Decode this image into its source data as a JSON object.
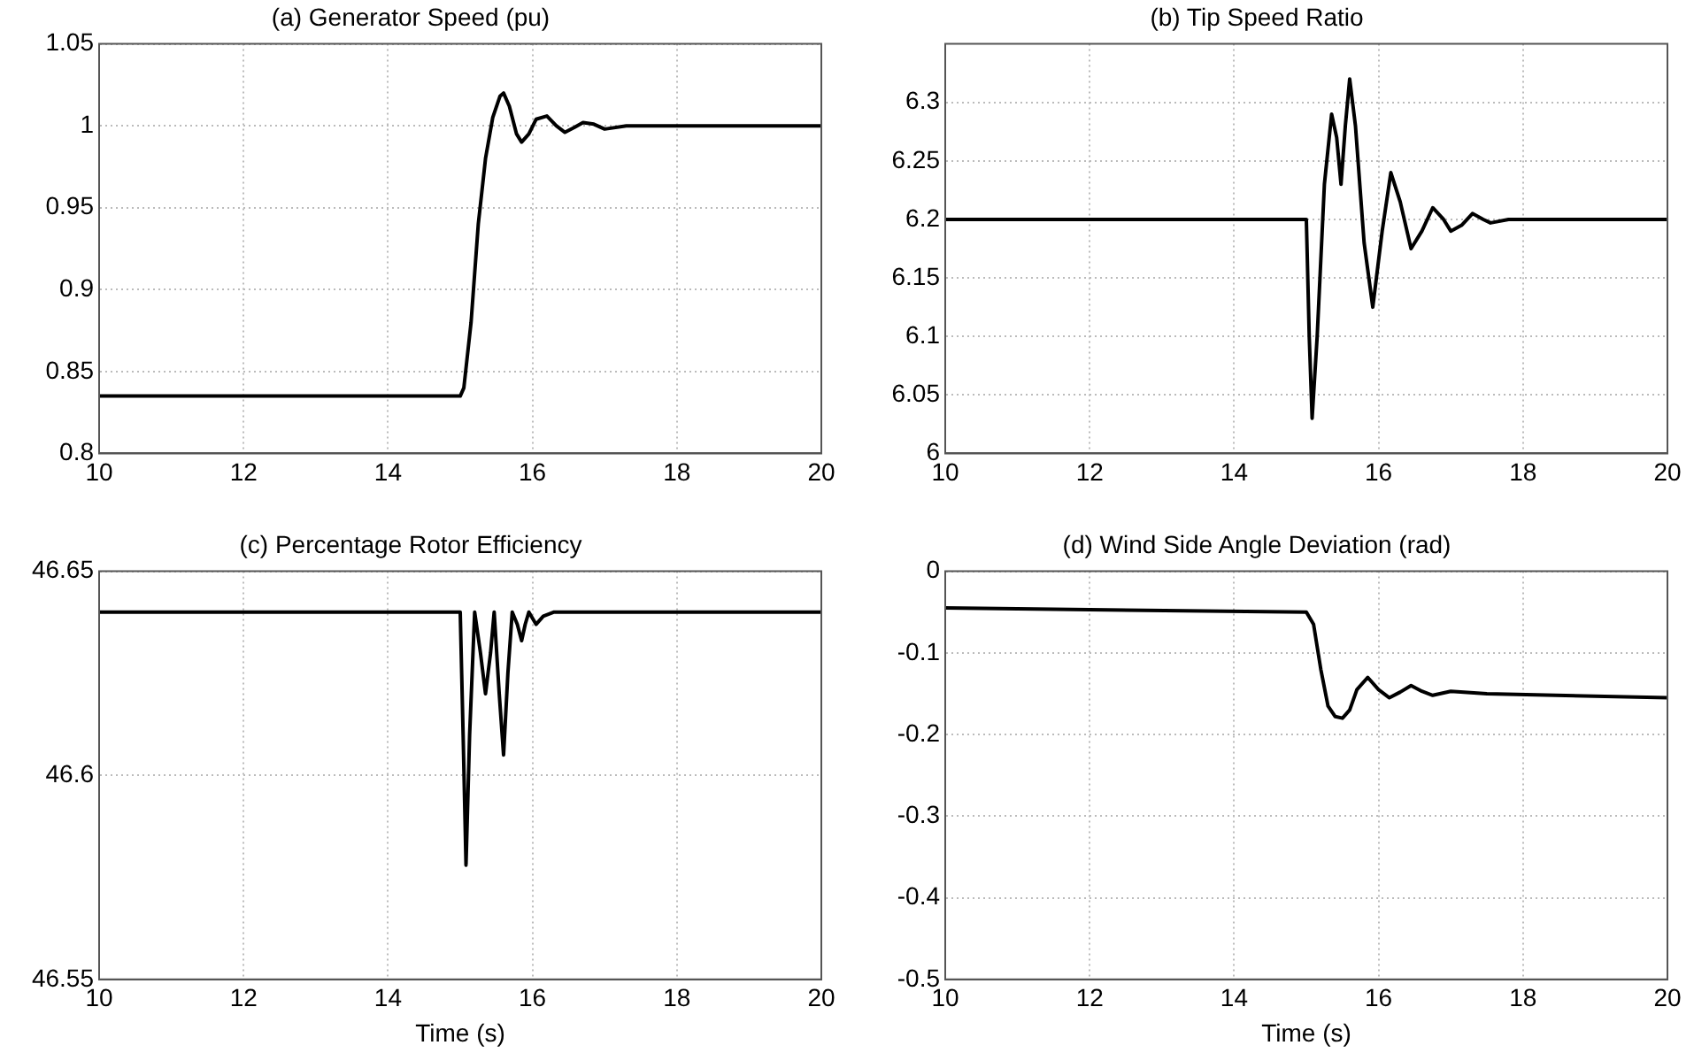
{
  "chart_data": [
    {
      "type": "line",
      "title": "(a) Generator Speed (pu)",
      "x": [
        10,
        15.0,
        15.05,
        15.15,
        15.25,
        15.35,
        15.45,
        15.55,
        15.6,
        15.68,
        15.78,
        15.85,
        15.95,
        16.05,
        16.2,
        16.33,
        16.45,
        16.58,
        16.7,
        16.85,
        17.0,
        17.3,
        17.6,
        20
      ],
      "xlim": [
        10,
        20
      ],
      "xticks": [
        10,
        12,
        14,
        16,
        18,
        20
      ],
      "ylim": [
        0.8,
        1.05
      ],
      "yticks": [
        0.8,
        0.85,
        0.9,
        0.95,
        1,
        1.05
      ],
      "grid": true,
      "marker": "none",
      "line_style": "solid",
      "legend": false,
      "series": [
        {
          "color": "#000000",
          "values": [
            0.835,
            0.835,
            0.84,
            0.88,
            0.94,
            0.98,
            1.005,
            1.018,
            1.02,
            1.012,
            0.995,
            0.99,
            0.995,
            1.004,
            1.006,
            1.0,
            0.996,
            0.999,
            1.002,
            1.001,
            0.998,
            1.0,
            1.0,
            1.0
          ]
        }
      ]
    },
    {
      "type": "line",
      "title": "(b) Tip Speed Ratio",
      "x": [
        10,
        15.0,
        15.04,
        15.08,
        15.15,
        15.25,
        15.35,
        15.42,
        15.48,
        15.54,
        15.6,
        15.68,
        15.8,
        15.92,
        16.05,
        16.17,
        16.3,
        16.45,
        16.6,
        16.75,
        16.9,
        17.0,
        17.15,
        17.3,
        17.45,
        17.55,
        17.8,
        20
      ],
      "xlim": [
        10,
        20
      ],
      "xticks": [
        10,
        12,
        14,
        16,
        18,
        20
      ],
      "ylim": [
        6,
        6.35
      ],
      "yticks": [
        6,
        6.05,
        6.1,
        6.15,
        6.2,
        6.25,
        6.3
      ],
      "grid": true,
      "marker": "none",
      "line_style": "solid",
      "legend": false,
      "series": [
        {
          "color": "#000000",
          "values": [
            6.2,
            6.2,
            6.1,
            6.03,
            6.1,
            6.23,
            6.29,
            6.27,
            6.23,
            6.28,
            6.32,
            6.28,
            6.18,
            6.125,
            6.19,
            6.24,
            6.215,
            6.175,
            6.19,
            6.21,
            6.2,
            6.19,
            6.195,
            6.205,
            6.2,
            6.197,
            6.2,
            6.2
          ]
        }
      ]
    },
    {
      "type": "line",
      "title": "(c) Percentage Rotor Efficiency",
      "xlabel": "Time (s)",
      "x": [
        10,
        15.0,
        15.04,
        15.08,
        15.13,
        15.2,
        15.28,
        15.35,
        15.42,
        15.47,
        15.54,
        15.6,
        15.66,
        15.72,
        15.79,
        15.85,
        15.9,
        15.95,
        16.05,
        16.15,
        16.3,
        16.5,
        20
      ],
      "xlim": [
        10,
        20
      ],
      "xticks": [
        10,
        12,
        14,
        16,
        18,
        20
      ],
      "ylim": [
        46.55,
        46.65
      ],
      "yticks": [
        46.55,
        46.6,
        46.65
      ],
      "grid": true,
      "marker": "none",
      "line_style": "solid",
      "legend": false,
      "series": [
        {
          "color": "#000000",
          "values": [
            46.64,
            46.64,
            46.61,
            46.578,
            46.61,
            46.64,
            46.63,
            46.62,
            46.63,
            46.64,
            46.62,
            46.605,
            46.625,
            46.64,
            46.637,
            46.633,
            46.637,
            46.64,
            46.637,
            46.639,
            46.64,
            46.64,
            46.64
          ]
        }
      ]
    },
    {
      "type": "line",
      "title": "(d) Wind Side Angle Deviation (rad)",
      "xlabel": "Time (s)",
      "x": [
        10,
        15.0,
        15.1,
        15.2,
        15.3,
        15.4,
        15.5,
        15.6,
        15.7,
        15.85,
        16.0,
        16.15,
        16.3,
        16.45,
        16.6,
        16.75,
        17.0,
        17.5,
        20
      ],
      "xlim": [
        10,
        20
      ],
      "xticks": [
        10,
        12,
        14,
        16,
        18,
        20
      ],
      "ylim": [
        -0.5,
        0
      ],
      "yticks": [
        -0.5,
        -0.4,
        -0.3,
        -0.2,
        -0.1,
        0
      ],
      "grid": true,
      "marker": "none",
      "line_style": "solid",
      "legend": false,
      "series": [
        {
          "color": "#000000",
          "values": [
            -0.045,
            -0.05,
            -0.065,
            -0.12,
            -0.165,
            -0.178,
            -0.18,
            -0.17,
            -0.145,
            -0.13,
            -0.145,
            -0.155,
            -0.148,
            -0.14,
            -0.147,
            -0.152,
            -0.147,
            -0.15,
            -0.155
          ]
        }
      ]
    }
  ]
}
